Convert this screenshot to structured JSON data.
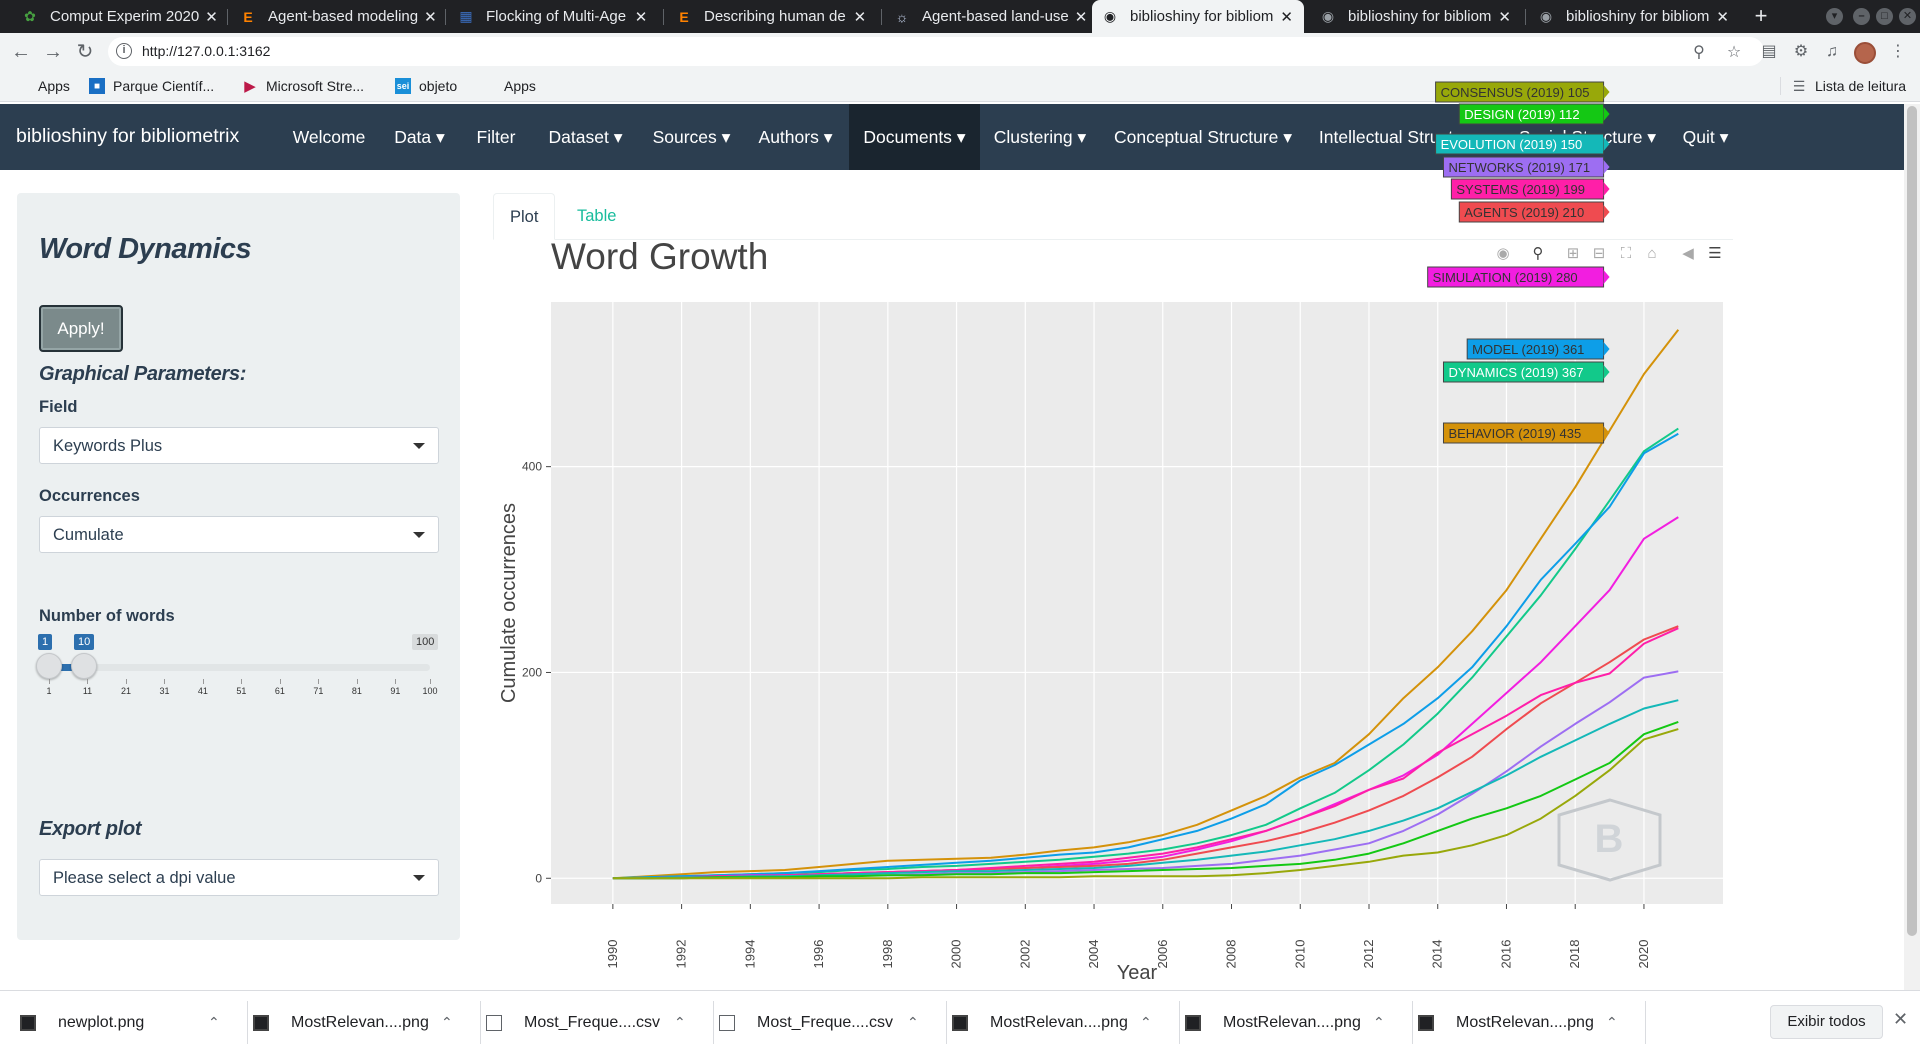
{
  "browser": {
    "tabs": [
      {
        "title": "Comput Experim 2020",
        "icon": "overleaf-icon"
      },
      {
        "title": "Agent-based modeling",
        "icon": "elsevier-icon"
      },
      {
        "title": "Flocking of Multi-Age",
        "icon": "ieee-icon"
      },
      {
        "title": "Describing human de",
        "icon": "elsevier-icon"
      },
      {
        "title": "Agent-based land-use",
        "icon": "springer-icon"
      },
      {
        "title": "biblioshiny for bibliom",
        "icon": "globe-icon"
      },
      {
        "title": "biblioshiny for bibliom",
        "icon": "globe-icon"
      },
      {
        "title": "biblioshiny for bibliom",
        "icon": "globe-icon"
      }
    ],
    "url": "http://127.0.0.1:3162",
    "bookmarks": [
      "Apps",
      "Parque Científ...",
      "Microsoft Stre...",
      "objeto",
      "Apps"
    ],
    "reading_list": "Lista de leitura"
  },
  "app": {
    "brand": "biblioshiny for bibliometrix",
    "nav": [
      "Welcome",
      "Data ▾",
      "Filter",
      "Dataset ▾",
      "Sources ▾",
      "Authors ▾",
      "Documents ▾",
      "Clustering ▾",
      "Conceptual Structure ▾",
      "Intellectual Structure ▾",
      "Social Structure ▾",
      "Quit ▾"
    ],
    "active_nav": "Documents ▾"
  },
  "sidebar": {
    "title": "Word Dynamics",
    "apply_label": "Apply!",
    "graphical_parameters": "Graphical Parameters:",
    "field_label": "Field",
    "field_value": "Keywords Plus",
    "occurrences_label": "Occurrences",
    "occurrences_value": "Cumulate",
    "number_of_words_label": "Number of words",
    "slider": {
      "min": 1,
      "max": 100,
      "from": 1,
      "to": 10,
      "min_label": "1",
      "to_label": "10",
      "max_label": "100",
      "ticks": [
        "1",
        "11",
        "21",
        "31",
        "41",
        "51",
        "61",
        "71",
        "81",
        "91",
        "100"
      ]
    },
    "export_plot": "Export plot",
    "dpi_placeholder": "Please select a dpi value"
  },
  "main": {
    "tabs": [
      "Plot",
      "Table"
    ],
    "active_tab": "Plot"
  },
  "chart_data": {
    "type": "line",
    "title": "Word Growth",
    "xlabel": "Year",
    "ylabel": "Cumulate occurrences",
    "xlim": [
      1988.2,
      2022.3
    ],
    "ylim": [
      -25,
      560
    ],
    "yticks": [
      0,
      200,
      400
    ],
    "xticks": [
      1990,
      1992,
      1994,
      1996,
      1998,
      2000,
      2002,
      2004,
      2006,
      2008,
      2010,
      2012,
      2014,
      2016,
      2018,
      2020
    ],
    "grid": true,
    "background": "#ebebeb",
    "x": [
      1990,
      1991,
      1992,
      1993,
      1994,
      1995,
      1996,
      1997,
      1998,
      1999,
      2000,
      2001,
      2002,
      2003,
      2004,
      2005,
      2006,
      2007,
      2008,
      2009,
      2010,
      2011,
      2012,
      2013,
      2014,
      2015,
      2016,
      2017,
      2018,
      2019,
      2020,
      2021
    ],
    "series": [
      {
        "name": "BEHAVIOR",
        "color": "#d4920a",
        "label": "BEHAVIOR (2019) 435",
        "values": [
          0,
          2,
          4,
          6,
          7,
          8,
          11,
          14,
          17,
          18,
          19,
          20,
          23,
          27,
          30,
          35,
          42,
          52,
          66,
          80,
          98,
          112,
          140,
          175,
          205,
          240,
          280,
          330,
          380,
          435,
          490,
          533
        ]
      },
      {
        "name": "DYNAMICS",
        "color": "#12c98a",
        "label": "DYNAMICS (2019) 367",
        "values": [
          0,
          1,
          2,
          3,
          4,
          5,
          6,
          8,
          9,
          11,
          12,
          14,
          16,
          18,
          21,
          24,
          28,
          34,
          42,
          52,
          68,
          83,
          105,
          130,
          160,
          195,
          235,
          275,
          320,
          367,
          415,
          437
        ]
      },
      {
        "name": "MODEL",
        "color": "#0d9ee8",
        "label": "MODEL (2019) 361",
        "values": [
          0,
          1,
          2,
          3,
          4,
          5,
          7,
          9,
          11,
          13,
          15,
          17,
          20,
          23,
          25,
          30,
          38,
          46,
          58,
          72,
          95,
          110,
          130,
          150,
          175,
          205,
          245,
          290,
          325,
          361,
          413,
          432
        ]
      },
      {
        "name": "SIMULATION",
        "color": "#f21ee0",
        "label": "SIMULATION (2019) 280",
        "values": [
          0,
          0,
          1,
          2,
          3,
          3,
          4,
          5,
          6,
          7,
          8,
          9,
          10,
          12,
          14,
          17,
          21,
          28,
          36,
          46,
          58,
          72,
          86,
          100,
          120,
          150,
          180,
          210,
          245,
          280,
          330,
          351
        ]
      },
      {
        "name": "AGENTS",
        "color": "#ef4b50",
        "label": "AGENTS (2019) 210",
        "values": [
          0,
          0,
          1,
          1,
          2,
          3,
          4,
          5,
          6,
          7,
          8,
          9,
          10,
          11,
          12,
          14,
          18,
          24,
          30,
          36,
          44,
          54,
          66,
          80,
          98,
          118,
          145,
          170,
          190,
          210,
          232,
          245
        ]
      },
      {
        "name": "SYSTEMS",
        "color": "#ff1fa8",
        "label": "SYSTEMS (2019) 199",
        "values": [
          0,
          0,
          1,
          2,
          2,
          3,
          4,
          5,
          6,
          7,
          8,
          10,
          12,
          14,
          16,
          20,
          24,
          30,
          38,
          46,
          58,
          70,
          86,
          97,
          122,
          140,
          158,
          178,
          190,
          199,
          228,
          243
        ]
      },
      {
        "name": "NETWORKS",
        "color": "#9d6ef2",
        "label": "NETWORKS (2019) 171",
        "values": [
          0,
          0,
          0,
          1,
          1,
          2,
          2,
          3,
          3,
          4,
          5,
          5,
          6,
          7,
          8,
          9,
          10,
          12,
          14,
          18,
          22,
          28,
          34,
          46,
          62,
          82,
          104,
          128,
          150,
          171,
          195,
          201
        ]
      },
      {
        "name": "EVOLUTION",
        "color": "#14b8b8",
        "label": "EVOLUTION (2019) 150",
        "values": [
          0,
          0,
          1,
          1,
          2,
          2,
          3,
          4,
          5,
          6,
          7,
          7,
          8,
          9,
          10,
          12,
          15,
          18,
          22,
          26,
          32,
          38,
          46,
          56,
          68,
          84,
          100,
          118,
          134,
          150,
          165,
          173
        ]
      },
      {
        "name": "DESIGN",
        "color": "#14c814",
        "label": "DESIGN (2019) 112",
        "values": [
          0,
          0,
          0,
          1,
          1,
          1,
          2,
          2,
          3,
          3,
          4,
          4,
          5,
          5,
          6,
          7,
          8,
          9,
          10,
          12,
          14,
          18,
          24,
          34,
          46,
          58,
          68,
          80,
          96,
          112,
          140,
          152
        ]
      },
      {
        "name": "CONSENSUS",
        "color": "#98a80a",
        "label": "CONSENSUS (2019) 105",
        "values": [
          0,
          0,
          0,
          0,
          0,
          0,
          0,
          0,
          0,
          1,
          1,
          1,
          1,
          1,
          2,
          2,
          2,
          2,
          3,
          5,
          8,
          12,
          16,
          22,
          25,
          32,
          42,
          58,
          80,
          105,
          135,
          145
        ]
      }
    ]
  },
  "downloads": {
    "items": [
      "newplot.png",
      "MostRelevan....png",
      "Most_Freque....csv",
      "Most_Freque....csv",
      "MostRelevan....png",
      "MostRelevan....png",
      "MostRelevan....png"
    ],
    "show_all": "Exibir todos"
  }
}
